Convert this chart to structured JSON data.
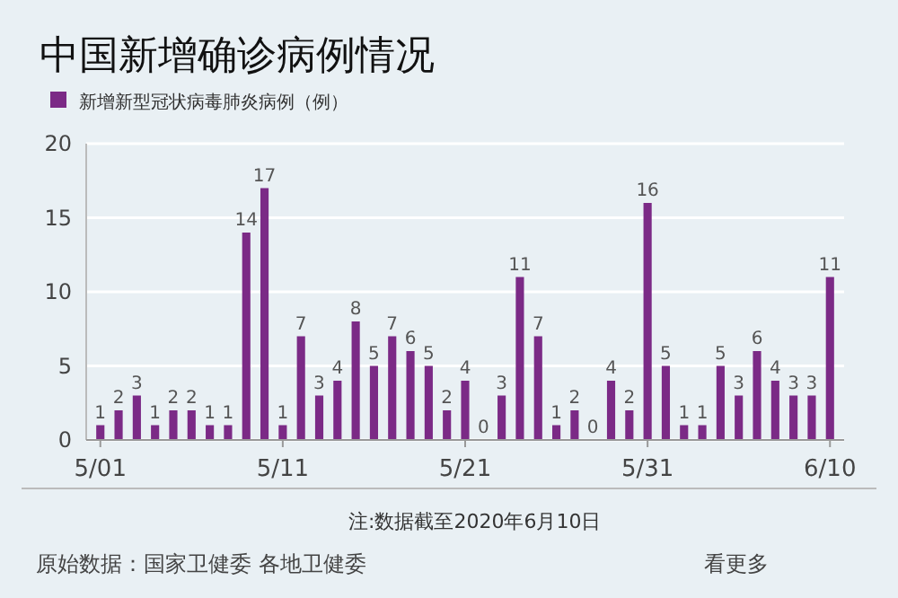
{
  "chart_data": {
    "type": "bar",
    "title": "中国新增确诊病例情况",
    "categories": [
      "5/01",
      null,
      null,
      null,
      null,
      null,
      null,
      null,
      null,
      null,
      "5/11",
      null,
      null,
      null,
      null,
      null,
      null,
      null,
      null,
      null,
      "5/21",
      null,
      null,
      null,
      null,
      null,
      null,
      null,
      null,
      null,
      "5/31",
      null,
      null,
      null,
      null,
      null,
      null,
      null,
      null,
      null,
      "6/10"
    ],
    "series": [
      {
        "name": "新增新型冠状病毒肺炎病例（例）",
        "color": "#7b2a86",
        "values": [
          1,
          2,
          3,
          1,
          2,
          2,
          1,
          1,
          14,
          17,
          1,
          7,
          3,
          4,
          8,
          5,
          7,
          6,
          5,
          2,
          4,
          0,
          3,
          11,
          7,
          1,
          2,
          0,
          4,
          2,
          16,
          5,
          1,
          1,
          5,
          3,
          6,
          4,
          3,
          3,
          11
        ]
      }
    ],
    "ylim": [
      0,
      20
    ],
    "yticks": [
      0,
      5,
      10,
      15,
      20
    ],
    "grid": "y",
    "legend": "top left",
    "data_labels": true,
    "annotations": [
      "注:数据截至2020年6月10日",
      "原始数据：国家卫健委 各地卫健委",
      "看更多"
    ]
  }
}
